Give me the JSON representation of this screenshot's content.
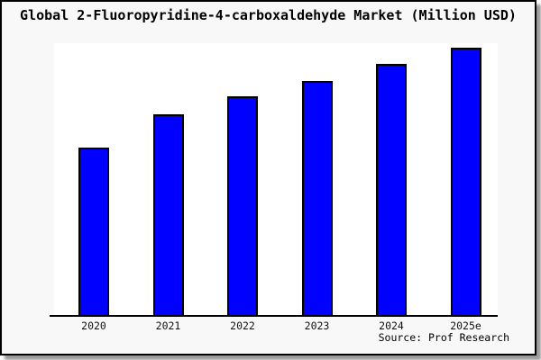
{
  "chart_data": {
    "type": "bar",
    "title": "Global 2-Fluoropyridine-4-carboxaldehyde Market (Million USD)",
    "categories": [
      "2020",
      "2021",
      "2022",
      "2023",
      "2024",
      "2025e"
    ],
    "values": [
      62.9,
      75.3,
      82.1,
      87.6,
      94.0,
      100.0
    ],
    "series_note": "no y-axis shown in chart; values are relative index normalized to 2025e = 100",
    "xlabel": "",
    "ylabel": "",
    "ylim": [
      0,
      105
    ],
    "grid": false,
    "legend": "none",
    "bar_color": "#0000ff",
    "bar_border_color": "#000000",
    "card_background": "#f8f8f8",
    "plot_background": "#ffffff",
    "source": "Source: Prof Research"
  }
}
